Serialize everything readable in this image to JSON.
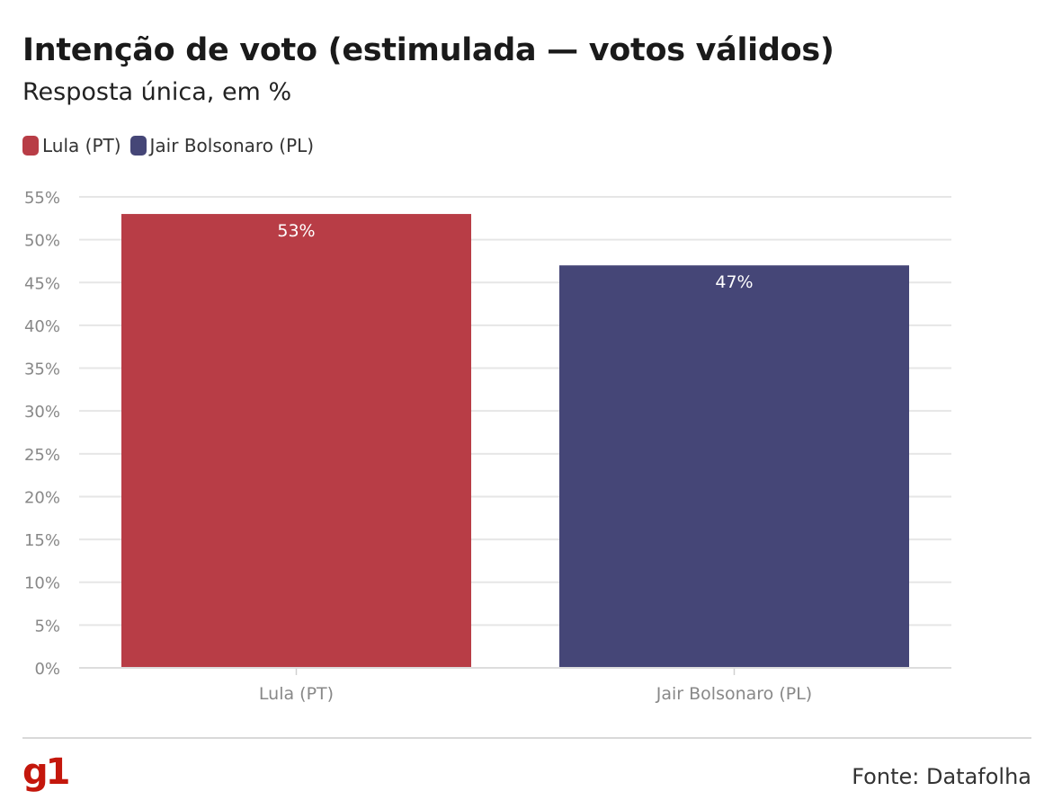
{
  "header": {
    "title": "Intenção de voto (estimulada — votos válidos)",
    "subtitle": "Resposta única, em %"
  },
  "footer": {
    "logo": "g1",
    "source": "Fonte: Datafolha"
  },
  "colors": {
    "lula": "#b83d46",
    "bolsonaro": "#454677",
    "grid": "#e6e6e6",
    "logo": "#c4170c"
  },
  "chart_data": {
    "type": "bar",
    "categories": [
      "Lula (PT)",
      "Jair Bolsonaro (PL)"
    ],
    "values": [
      53,
      47
    ],
    "data_labels": [
      "53%",
      "47%"
    ],
    "title": "Intenção de voto (estimulada — votos válidos)",
    "subtitle": "Resposta única, em %",
    "xlabel": "",
    "ylabel": "",
    "ylim": [
      0,
      55
    ],
    "yticks": [
      0,
      5,
      10,
      15,
      20,
      25,
      30,
      35,
      40,
      45,
      50,
      55
    ],
    "ytick_labels": [
      "0%",
      "5%",
      "10%",
      "15%",
      "20%",
      "25%",
      "30%",
      "35%",
      "40%",
      "45%",
      "50%",
      "55%"
    ],
    "legend": {
      "placement": "top-left",
      "entries": [
        "Lula (PT)",
        "Jair Bolsonaro (PL)"
      ]
    },
    "grid": true
  }
}
